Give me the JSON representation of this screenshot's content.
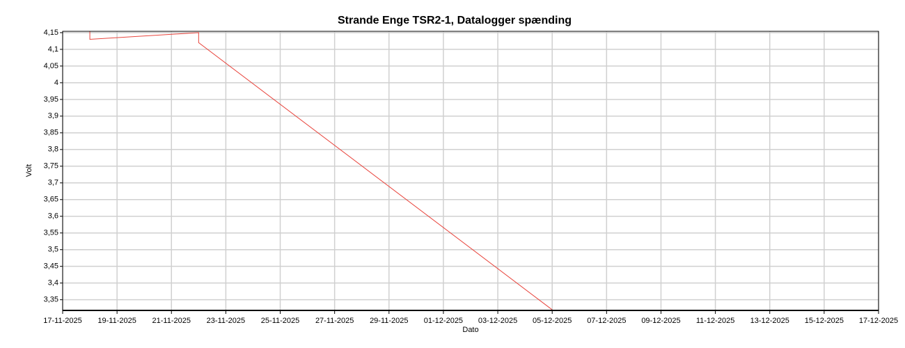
{
  "chart_data": {
    "type": "line",
    "title": "Strande Enge TSR2-1, Datalogger spænding",
    "xlabel": "Dato",
    "ylabel": "Volt",
    "x": [
      "18-11-2025",
      "18-11-2025",
      "22-11-2025",
      "22-11-2025",
      "05-12-2025"
    ],
    "series": [
      {
        "name": "Datalogger spænding",
        "color": "#e8423a",
        "values": [
          4.16,
          4.13,
          4.15,
          4.12,
          3.32
        ]
      }
    ],
    "xlim": [
      "17-11-2025",
      "17-12-2025"
    ],
    "xticks": [
      "17-11-2025",
      "19-11-2025",
      "21-11-2025",
      "23-11-2025",
      "25-11-2025",
      "27-11-2025",
      "29-11-2025",
      "01-12-2025",
      "03-12-2025",
      "05-12-2025",
      "07-12-2025",
      "09-12-2025",
      "11-12-2025",
      "13-12-2025",
      "15-12-2025",
      "17-12-2025"
    ],
    "ylim": [
      3.318,
      4.154
    ],
    "yticks": [
      {
        "value": 4.15,
        "label": "4,15"
      },
      {
        "value": 4.1,
        "label": "4,1"
      },
      {
        "value": 4.05,
        "label": "4,05"
      },
      4,
      {
        "value": 3.95,
        "label": "3,95"
      },
      {
        "value": 3.9,
        "label": "3,9"
      },
      {
        "value": 3.85,
        "label": "3,85"
      },
      {
        "value": 3.8,
        "label": "3,8"
      },
      {
        "value": 3.75,
        "label": "3,75"
      },
      {
        "value": 3.7,
        "label": "3,7"
      },
      {
        "value": 3.65,
        "label": "3,65"
      },
      {
        "value": 3.6,
        "label": "3,6"
      },
      {
        "value": 3.55,
        "label": "3,55"
      },
      {
        "value": 3.5,
        "label": "3,5"
      },
      {
        "value": 3.45,
        "label": "3,45"
      },
      {
        "value": 3.4,
        "label": "3,4"
      },
      {
        "value": 3.35,
        "label": "3,35"
      }
    ],
    "grid": true
  }
}
